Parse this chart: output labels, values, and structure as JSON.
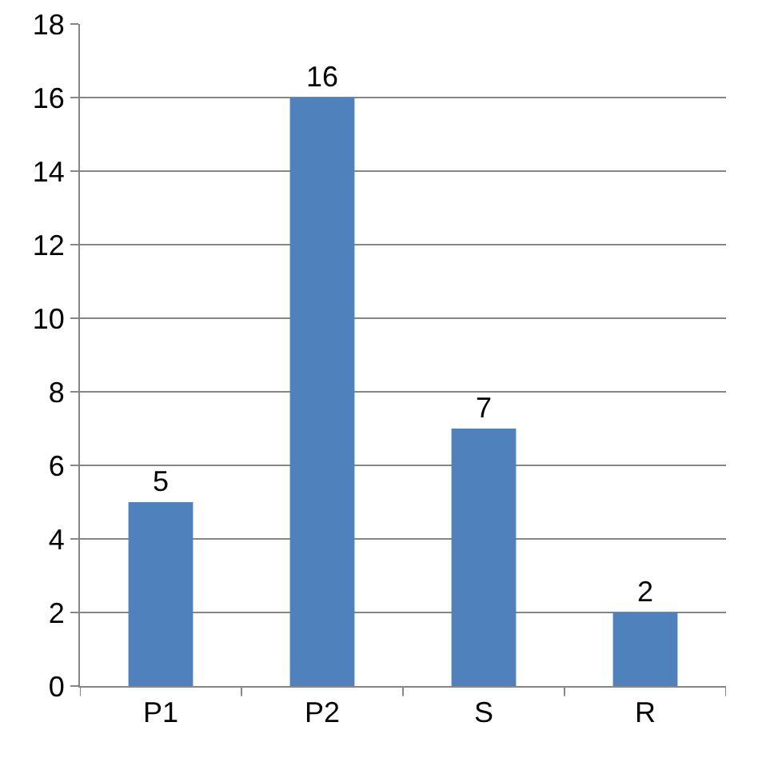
{
  "chart_data": {
    "type": "bar",
    "categories": [
      "P1",
      "P2",
      "S",
      "R"
    ],
    "values": [
      5,
      16,
      7,
      2
    ],
    "color": "#4f81bd",
    "ylim": [
      0,
      18
    ],
    "yticks": [
      0,
      2,
      4,
      6,
      8,
      10,
      12,
      14,
      16,
      18
    ],
    "grid": "y",
    "data_labels": true
  }
}
